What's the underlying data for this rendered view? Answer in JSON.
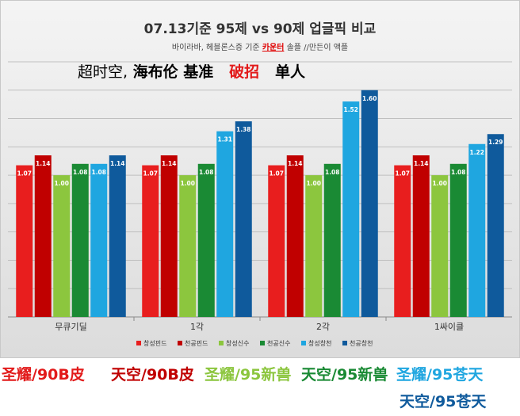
{
  "overlay": {
    "part1": "超时空,",
    "part2": " 海布伦 基准",
    "part3": "破招",
    "part4": "单人"
  },
  "subtitle": {
    "before": "바이라바, 헤블론스증 기준 ",
    "highlight": "카운터",
    "after": " 솔플 //만든이 액플"
  },
  "chart_data": {
    "type": "bar",
    "title": "07.13기준 95제 vs 90제 업글픽 비교",
    "categories": [
      "무큐기딜",
      "1각",
      "2각",
      "1싸이클"
    ],
    "series": [
      {
        "name": "창성핀드",
        "color": "#e81e1e",
        "values": [
          1.07,
          1.07,
          1.07,
          1.07
        ]
      },
      {
        "name": "천공핀드",
        "color": "#c00000",
        "values": [
          1.14,
          1.14,
          1.14,
          1.14
        ]
      },
      {
        "name": "창성신수",
        "color": "#8cc63e",
        "values": [
          1.0,
          1.0,
          1.0,
          1.0
        ]
      },
      {
        "name": "천공신수",
        "color": "#1a8a34",
        "values": [
          1.08,
          1.08,
          1.08,
          1.08
        ]
      },
      {
        "name": "창성창천",
        "color": "#1fa6e0",
        "values": [
          1.08,
          1.31,
          1.52,
          1.22
        ]
      },
      {
        "name": "천공창천",
        "color": "#0f5a9c",
        "values": [
          1.14,
          1.38,
          1.6,
          1.29
        ]
      }
    ],
    "ylim": [
      0,
      1.8
    ],
    "grid": true,
    "legend_position": "bottom"
  },
  "bottom_labels": [
    {
      "text": "圣耀/90B皮",
      "color": "#e21a1a"
    },
    {
      "text": "天空/90B皮",
      "color": "#c00000"
    },
    {
      "text": "圣耀/95新兽",
      "color": "#8cc63e"
    },
    {
      "text": "天空/95新兽",
      "color": "#1a8a34"
    },
    {
      "text": "圣耀/95苍天",
      "color": "#1fa6e0"
    },
    {
      "text": "天空/95苍天",
      "color": "#0f5a9c"
    }
  ]
}
